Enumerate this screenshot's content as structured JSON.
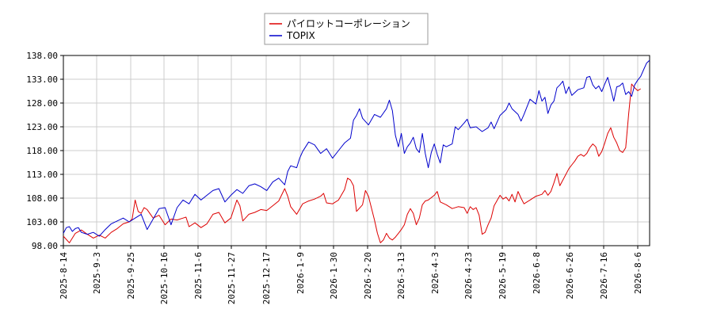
{
  "chart_data": {
    "type": "line",
    "title": "",
    "xlabel": "",
    "ylabel": "",
    "ylim": [
      98,
      138
    ],
    "yticks": [
      "98.00",
      "103.00",
      "108.00",
      "113.00",
      "118.00",
      "123.00",
      "128.00",
      "133.00",
      "138.00"
    ],
    "xticks": [
      "2025-8-14",
      "2025-9-3",
      "2025-9-25",
      "2025-10-16",
      "2025-11-6",
      "2025-11-27",
      "2025-12-17",
      "2026-1-9",
      "2026-1-30",
      "2026-2-20",
      "2026-3-13",
      "2026-4-3",
      "2026-4-23",
      "2026-5-19",
      "2026-6-8",
      "2026-6-26",
      "2026-7-16",
      "2026-8-6"
    ],
    "grid": true,
    "legend": "top-center",
    "series": [
      {
        "name": "パイロットコーポレーション",
        "color": "#dd0000",
        "values": [
          [
            0,
            100.0
          ],
          [
            2,
            98.6
          ],
          [
            4,
            100.6
          ],
          [
            6,
            101.3
          ],
          [
            8,
            100.4
          ],
          [
            10,
            99.6
          ],
          [
            12,
            100.2
          ],
          [
            14,
            99.6
          ],
          [
            16,
            100.8
          ],
          [
            18,
            101.6
          ],
          [
            20,
            102.6
          ],
          [
            22,
            103.0
          ],
          [
            23,
            103.6
          ],
          [
            24,
            107.6
          ],
          [
            25,
            105.2
          ],
          [
            26,
            104.8
          ],
          [
            27,
            106.0
          ],
          [
            28,
            105.6
          ],
          [
            30,
            103.8
          ],
          [
            32,
            104.4
          ],
          [
            34,
            102.4
          ],
          [
            36,
            103.6
          ],
          [
            38,
            103.4
          ],
          [
            40,
            103.8
          ],
          [
            41,
            104.0
          ],
          [
            42,
            102.0
          ],
          [
            44,
            102.8
          ],
          [
            46,
            101.8
          ],
          [
            48,
            102.6
          ],
          [
            50,
            104.6
          ],
          [
            52,
            105.0
          ],
          [
            54,
            102.8
          ],
          [
            56,
            103.8
          ],
          [
            58,
            107.6
          ],
          [
            59,
            106.4
          ],
          [
            60,
            103.2
          ],
          [
            62,
            104.6
          ],
          [
            64,
            105.0
          ],
          [
            66,
            105.6
          ],
          [
            68,
            105.4
          ],
          [
            70,
            106.4
          ],
          [
            72,
            107.4
          ],
          [
            74,
            110.0
          ],
          [
            75,
            108.4
          ],
          [
            76,
            106.2
          ],
          [
            78,
            104.6
          ],
          [
            80,
            106.8
          ],
          [
            82,
            107.4
          ],
          [
            84,
            107.8
          ],
          [
            86,
            108.4
          ],
          [
            87,
            109.0
          ],
          [
            88,
            107.0
          ],
          [
            90,
            106.8
          ],
          [
            92,
            107.6
          ],
          [
            94,
            109.8
          ],
          [
            95,
            112.2
          ],
          [
            96,
            111.8
          ],
          [
            97,
            110.6
          ],
          [
            98,
            105.2
          ],
          [
            100,
            106.6
          ],
          [
            101,
            109.6
          ],
          [
            102,
            108.4
          ],
          [
            104,
            103.4
          ],
          [
            105,
            100.6
          ],
          [
            106,
            98.6
          ],
          [
            107,
            99.2
          ],
          [
            108,
            100.6
          ],
          [
            109,
            99.6
          ],
          [
            110,
            99.2
          ],
          [
            111,
            99.8
          ],
          [
            112,
            100.6
          ],
          [
            113,
            101.4
          ],
          [
            114,
            102.4
          ],
          [
            115,
            104.6
          ],
          [
            116,
            105.8
          ],
          [
            117,
            104.8
          ],
          [
            118,
            102.4
          ],
          [
            119,
            103.8
          ],
          [
            120,
            106.6
          ],
          [
            121,
            107.4
          ],
          [
            122,
            107.6
          ],
          [
            124,
            108.6
          ],
          [
            125,
            109.4
          ],
          [
            126,
            107.2
          ],
          [
            128,
            106.6
          ],
          [
            130,
            105.8
          ],
          [
            132,
            106.2
          ],
          [
            134,
            106.0
          ],
          [
            135,
            104.8
          ],
          [
            136,
            106.2
          ],
          [
            137,
            105.6
          ],
          [
            138,
            106.0
          ],
          [
            139,
            104.4
          ],
          [
            140,
            100.4
          ],
          [
            141,
            100.8
          ],
          [
            142,
            102.4
          ],
          [
            143,
            103.8
          ],
          [
            144,
            106.4
          ],
          [
            146,
            108.6
          ],
          [
            147,
            107.8
          ],
          [
            148,
            108.2
          ],
          [
            149,
            107.4
          ],
          [
            150,
            108.8
          ],
          [
            151,
            107.2
          ],
          [
            152,
            109.4
          ],
          [
            153,
            108.0
          ],
          [
            154,
            106.8
          ],
          [
            156,
            107.6
          ],
          [
            158,
            108.4
          ],
          [
            160,
            108.8
          ],
          [
            161,
            109.6
          ],
          [
            162,
            108.6
          ],
          [
            163,
            109.4
          ],
          [
            164,
            111.2
          ],
          [
            165,
            113.2
          ],
          [
            166,
            110.6
          ],
          [
            168,
            113.0
          ],
          [
            169,
            114.2
          ],
          [
            170,
            115.0
          ],
          [
            171,
            115.8
          ],
          [
            172,
            116.8
          ],
          [
            173,
            117.2
          ],
          [
            174,
            116.8
          ],
          [
            175,
            117.4
          ],
          [
            176,
            118.6
          ],
          [
            177,
            119.4
          ],
          [
            178,
            118.8
          ],
          [
            179,
            116.8
          ],
          [
            180,
            117.8
          ],
          [
            181,
            119.6
          ],
          [
            182,
            121.6
          ],
          [
            183,
            122.8
          ],
          [
            184,
            120.8
          ],
          [
            185,
            119.6
          ],
          [
            186,
            118.0
          ],
          [
            187,
            117.6
          ],
          [
            188,
            118.6
          ],
          [
            189,
            125.8
          ],
          [
            190,
            132.0
          ],
          [
            191,
            131.2
          ],
          [
            192,
            130.6
          ],
          [
            193,
            131.0
          ]
        ]
      },
      {
        "name": "TOPIX",
        "color": "#0000cc",
        "values": [
          [
            0,
            100.6
          ],
          [
            1,
            101.8
          ],
          [
            2,
            102.0
          ],
          [
            3,
            101.0
          ],
          [
            4,
            101.6
          ],
          [
            5,
            101.8
          ],
          [
            6,
            100.8
          ],
          [
            8,
            100.4
          ],
          [
            10,
            100.8
          ],
          [
            12,
            100.0
          ],
          [
            14,
            101.4
          ],
          [
            16,
            102.6
          ],
          [
            18,
            103.2
          ],
          [
            20,
            103.8
          ],
          [
            22,
            103.0
          ],
          [
            24,
            103.8
          ],
          [
            26,
            104.6
          ],
          [
            28,
            101.4
          ],
          [
            30,
            103.6
          ],
          [
            32,
            105.8
          ],
          [
            34,
            106.0
          ],
          [
            36,
            102.4
          ],
          [
            38,
            106.0
          ],
          [
            40,
            107.6
          ],
          [
            42,
            106.8
          ],
          [
            44,
            108.8
          ],
          [
            46,
            107.6
          ],
          [
            48,
            108.6
          ],
          [
            50,
            109.6
          ],
          [
            52,
            110.0
          ],
          [
            54,
            107.2
          ],
          [
            56,
            108.6
          ],
          [
            58,
            109.8
          ],
          [
            60,
            109.0
          ],
          [
            62,
            110.6
          ],
          [
            64,
            111.0
          ],
          [
            66,
            110.4
          ],
          [
            68,
            109.6
          ],
          [
            70,
            111.4
          ],
          [
            72,
            112.2
          ],
          [
            74,
            110.8
          ],
          [
            75,
            113.6
          ],
          [
            76,
            114.8
          ],
          [
            78,
            114.4
          ],
          [
            79,
            116.4
          ],
          [
            80,
            117.8
          ],
          [
            82,
            119.8
          ],
          [
            84,
            119.2
          ],
          [
            86,
            117.4
          ],
          [
            88,
            118.4
          ],
          [
            90,
            116.4
          ],
          [
            92,
            118.0
          ],
          [
            94,
            119.6
          ],
          [
            96,
            120.6
          ],
          [
            97,
            124.4
          ],
          [
            98,
            125.4
          ],
          [
            99,
            126.8
          ],
          [
            100,
            124.8
          ],
          [
            102,
            123.4
          ],
          [
            104,
            125.6
          ],
          [
            106,
            125.0
          ],
          [
            108,
            126.8
          ],
          [
            109,
            128.6
          ],
          [
            110,
            126.4
          ],
          [
            111,
            121.2
          ],
          [
            112,
            118.8
          ],
          [
            113,
            121.6
          ],
          [
            114,
            117.4
          ],
          [
            115,
            118.8
          ],
          [
            116,
            119.6
          ],
          [
            117,
            120.8
          ],
          [
            118,
            118.4
          ],
          [
            119,
            117.6
          ],
          [
            120,
            121.6
          ],
          [
            121,
            117.4
          ],
          [
            122,
            114.4
          ],
          [
            123,
            117.6
          ],
          [
            124,
            119.4
          ],
          [
            125,
            117.2
          ],
          [
            126,
            115.4
          ],
          [
            127,
            119.2
          ],
          [
            128,
            118.8
          ],
          [
            130,
            119.4
          ],
          [
            131,
            123.0
          ],
          [
            132,
            122.4
          ],
          [
            134,
            123.8
          ],
          [
            135,
            124.6
          ],
          [
            136,
            122.8
          ],
          [
            138,
            123.0
          ],
          [
            140,
            122.0
          ],
          [
            142,
            122.8
          ],
          [
            143,
            124.0
          ],
          [
            144,
            122.6
          ],
          [
            146,
            125.4
          ],
          [
            148,
            126.6
          ],
          [
            149,
            128.0
          ],
          [
            150,
            126.8
          ],
          [
            152,
            125.6
          ],
          [
            153,
            124.2
          ],
          [
            154,
            125.6
          ],
          [
            156,
            128.8
          ],
          [
            158,
            127.8
          ],
          [
            159,
            130.6
          ],
          [
            160,
            128.4
          ],
          [
            161,
            129.2
          ],
          [
            162,
            125.8
          ],
          [
            163,
            127.6
          ],
          [
            164,
            128.4
          ],
          [
            165,
            131.2
          ],
          [
            166,
            131.8
          ],
          [
            167,
            132.6
          ],
          [
            168,
            130.0
          ],
          [
            169,
            131.4
          ],
          [
            170,
            129.6
          ],
          [
            172,
            130.8
          ],
          [
            174,
            131.2
          ],
          [
            175,
            133.4
          ],
          [
            176,
            133.6
          ],
          [
            177,
            131.8
          ],
          [
            178,
            131.0
          ],
          [
            179,
            131.6
          ],
          [
            180,
            130.4
          ],
          [
            181,
            132.0
          ],
          [
            182,
            133.4
          ],
          [
            183,
            131.0
          ],
          [
            184,
            128.4
          ],
          [
            185,
            131.4
          ],
          [
            186,
            131.6
          ],
          [
            187,
            132.2
          ],
          [
            188,
            129.8
          ],
          [
            189,
            130.4
          ],
          [
            190,
            129.4
          ],
          [
            191,
            131.8
          ],
          [
            192,
            132.8
          ],
          [
            193,
            133.6
          ],
          [
            194,
            135.0
          ],
          [
            195,
            136.4
          ],
          [
            196,
            137.0
          ]
        ]
      }
    ]
  }
}
